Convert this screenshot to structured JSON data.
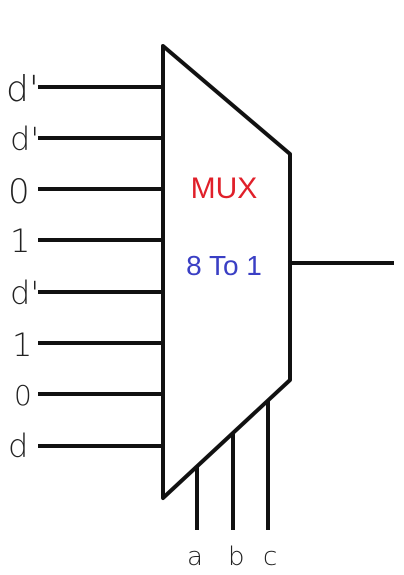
{
  "mux": {
    "title": "MUX",
    "subtitle": "8 To 1"
  },
  "inputs": [
    "d'",
    "d'",
    "0",
    "1",
    "d'",
    "1",
    "0",
    "d"
  ],
  "select_lines": [
    "a",
    "b",
    "c"
  ],
  "colors": {
    "stroke": "#111111",
    "title": "#e0202a",
    "subtitle": "#3a3fc4",
    "background": "#ffffff"
  }
}
